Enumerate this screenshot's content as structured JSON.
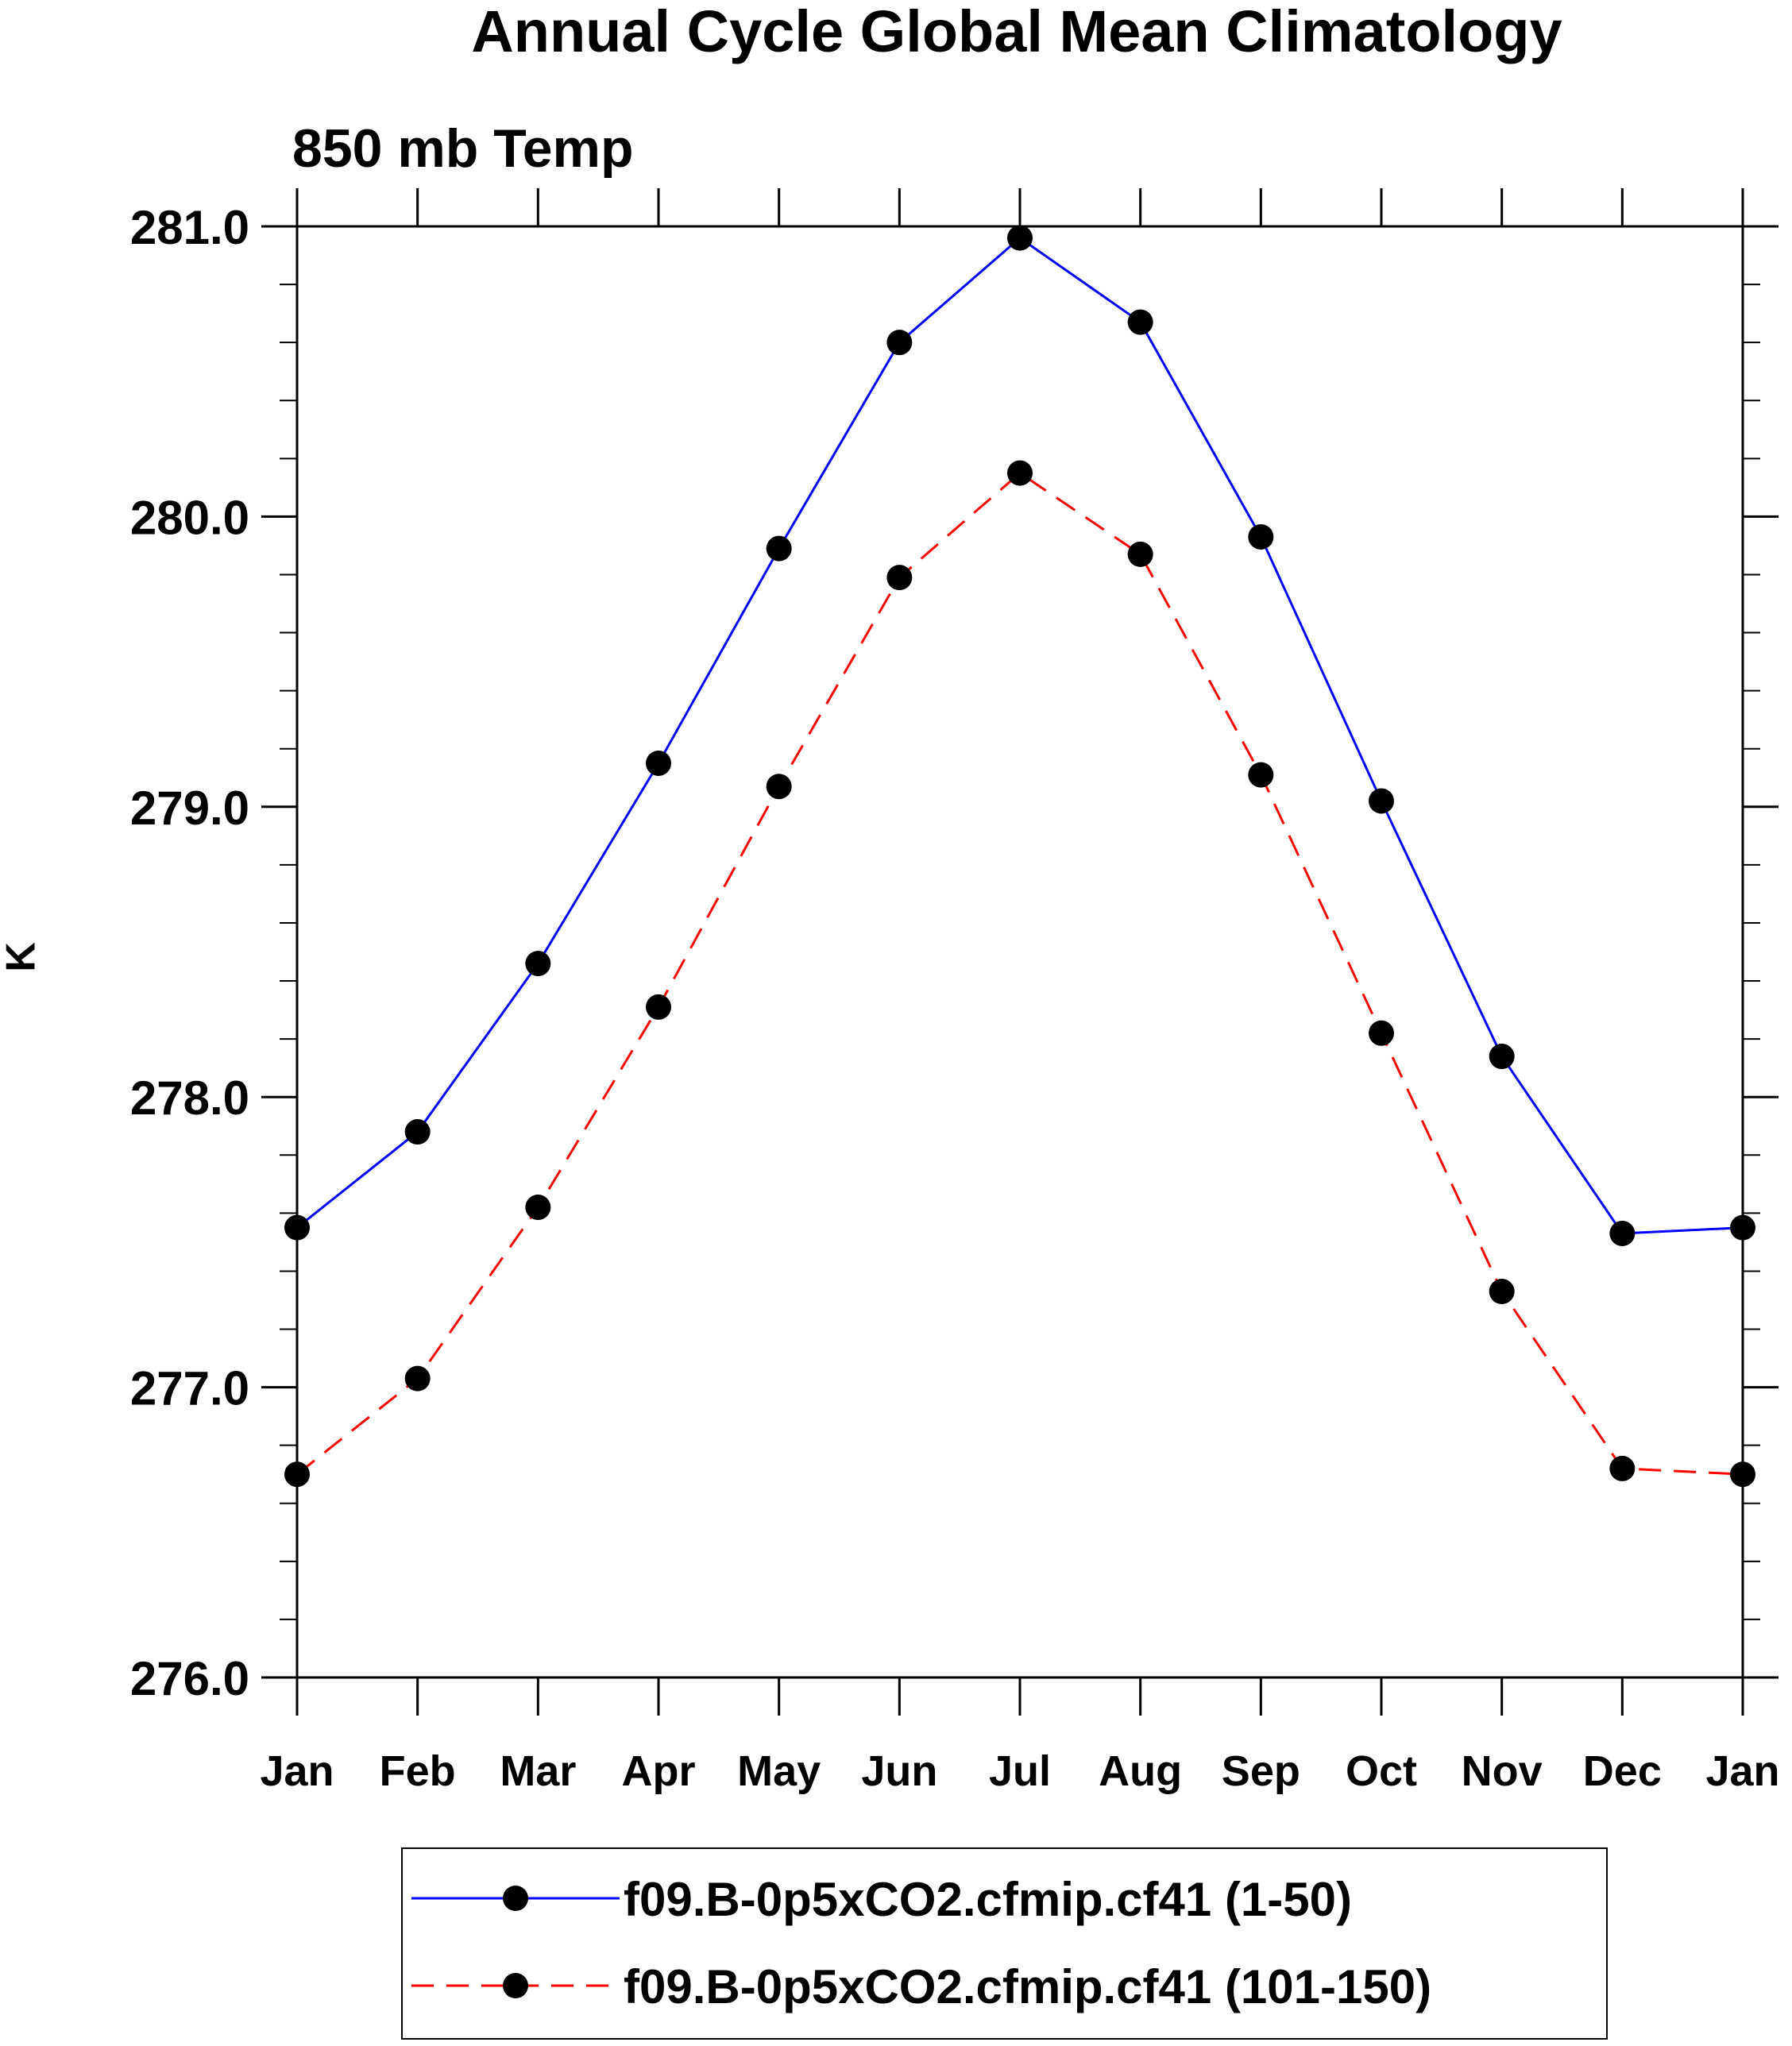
{
  "chart_data": {
    "type": "line",
    "title": "Annual Cycle Global Mean Climatology",
    "subtitle": "850 mb Temp",
    "xlabel": "",
    "ylabel": "K",
    "categories": [
      "Jan",
      "Feb",
      "Mar",
      "Apr",
      "May",
      "Jun",
      "Jul",
      "Aug",
      "Sep",
      "Oct",
      "Nov",
      "Dec",
      "Jan"
    ],
    "ylim": [
      276.0,
      281.0
    ],
    "yticks": [
      "276.0",
      "277.0",
      "278.0",
      "279.0",
      "280.0",
      "281.0"
    ],
    "y_minor_step": 0.2,
    "grid": false,
    "legend_position": "bottom",
    "series": [
      {
        "name": "f09.B-0p5xCO2.cfmip.cf41 (1-50)",
        "color": "#0000ff",
        "line_style": "solid",
        "marker": "filled-circle",
        "values": [
          277.55,
          277.88,
          278.46,
          279.15,
          279.89,
          280.6,
          280.96,
          280.67,
          279.93,
          279.02,
          278.14,
          277.53,
          277.55
        ]
      },
      {
        "name": "f09.B-0p5xCO2.cfmip.cf41 (101-150)",
        "color": "#ff0000",
        "line_style": "dashed",
        "marker": "filled-circle",
        "values": [
          276.7,
          277.03,
          277.62,
          278.31,
          279.07,
          279.79,
          280.15,
          279.87,
          279.11,
          278.22,
          277.33,
          276.72,
          276.7
        ]
      }
    ]
  }
}
